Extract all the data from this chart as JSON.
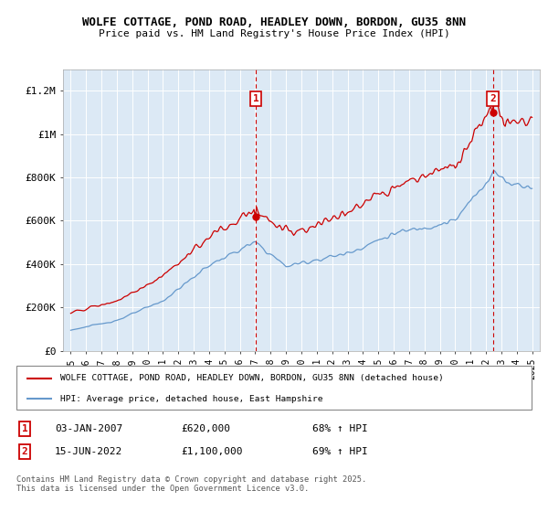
{
  "title1": "WOLFE COTTAGE, POND ROAD, HEADLEY DOWN, BORDON, GU35 8NN",
  "title2": "Price paid vs. HM Land Registry's House Price Index (HPI)",
  "plot_bg_color": "#dce9f5",
  "red_line_color": "#cc0000",
  "blue_line_color": "#6699cc",
  "ylim": [
    0,
    1300000
  ],
  "yticks": [
    0,
    200000,
    400000,
    600000,
    800000,
    1000000,
    1200000
  ],
  "ytick_labels": [
    "£0",
    "£200K",
    "£400K",
    "£600K",
    "£800K",
    "£1M",
    "£1.2M"
  ],
  "xlim_start": 1994.5,
  "xlim_end": 2025.5,
  "sale1_x": 2007.04,
  "sale1_y": 620000,
  "sale2_x": 2022.45,
  "sale2_y": 1100000,
  "legend_red": "WOLFE COTTAGE, POND ROAD, HEADLEY DOWN, BORDON, GU35 8NN (detached house)",
  "legend_blue": "HPI: Average price, detached house, East Hampshire",
  "note1_label": "1",
  "note1_date": "03-JAN-2007",
  "note1_price": "£620,000",
  "note1_hpi": "68% ↑ HPI",
  "note2_label": "2",
  "note2_date": "15-JUN-2022",
  "note2_price": "£1,100,000",
  "note2_hpi": "69% ↑ HPI",
  "footer": "Contains HM Land Registry data © Crown copyright and database right 2025.\nThis data is licensed under the Open Government Licence v3.0."
}
